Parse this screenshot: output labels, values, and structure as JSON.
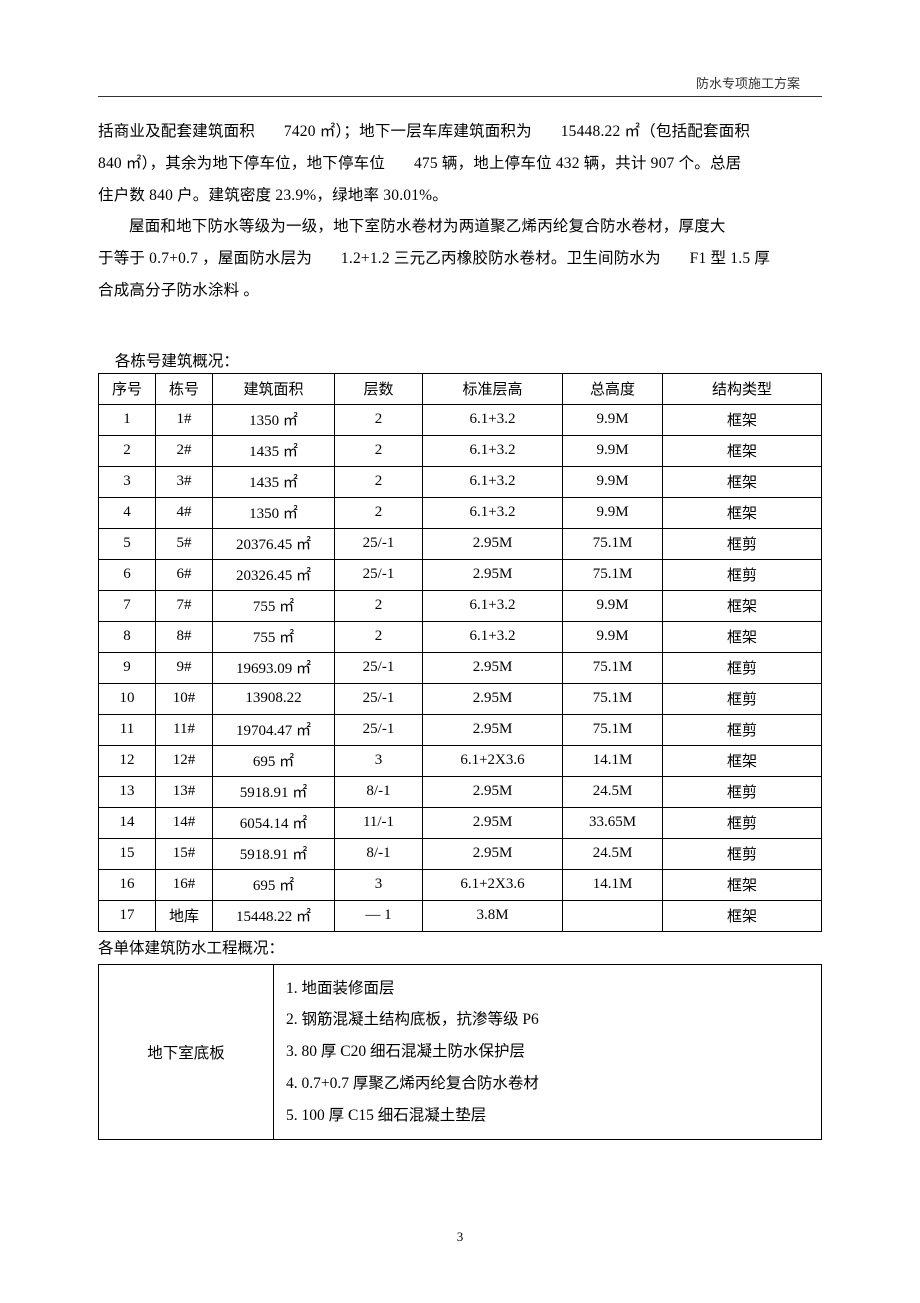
{
  "header": {
    "title": "防水专项施工方案"
  },
  "page_number": "3",
  "paragraphs": {
    "p1a": "括商业及配套建筑面积",
    "p1b": "7420 ㎡）；地下一层车库建筑面积为",
    "p1c": "15448.22 ㎡（包括配套面积",
    "p2a": "840 ㎡），其余为地下停车位，地下停车位",
    "p2b": "475 辆，地上停车位  432 辆，共计 907 个。总居",
    "p3": "住户数 840 户。建筑密度  23.9%，绿地率 30.01%。",
    "p4": "屋面和地下防水等级为一级，地下室防水卷材为两道聚乙烯丙纶复合防水卷材，厚度大",
    "p5a": "于等于 0.7+0.7 ，屋面防水层为",
    "p5b": "1.2+1.2  三元乙丙橡胶防水卷材。卫生间防水为",
    "p5c": "F1 型 1.5 厚",
    "p6": "合成高分子防水涂料 。"
  },
  "table1": {
    "caption": "各栋号建筑概况：",
    "headers": [
      "序号",
      "栋号",
      "建筑面积",
      "层数",
      "标准层高",
      "总高度",
      "结构类型"
    ],
    "col_widths": [
      "57px",
      "57px",
      "122px",
      "88px",
      "140px",
      "100px",
      ""
    ],
    "rows": [
      [
        "1",
        "1#",
        "1350 ㎡",
        "2",
        "6.1+3.2",
        "9.9M",
        "框架"
      ],
      [
        "2",
        "2#",
        "1435 ㎡",
        "2",
        "6.1+3.2",
        "9.9M",
        "框架"
      ],
      [
        "3",
        "3#",
        "1435 ㎡",
        "2",
        "6.1+3.2",
        "9.9M",
        "框架"
      ],
      [
        "4",
        "4#",
        "1350 ㎡",
        "2",
        "6.1+3.2",
        "9.9M",
        "框架"
      ],
      [
        "5",
        "5#",
        "20376.45 ㎡",
        "25/-1",
        "2.95M",
        "75.1M",
        "框剪"
      ],
      [
        "6",
        "6#",
        "20326.45 ㎡",
        "25/-1",
        "2.95M",
        "75.1M",
        "框剪"
      ],
      [
        "7",
        "7#",
        "755 ㎡",
        "2",
        "6.1+3.2",
        "9.9M",
        "框架"
      ],
      [
        "8",
        "8#",
        "755 ㎡",
        "2",
        "6.1+3.2",
        "9.9M",
        "框架"
      ],
      [
        "9",
        "9#",
        "19693.09 ㎡",
        "25/-1",
        "2.95M",
        "75.1M",
        "框剪"
      ],
      [
        "10",
        "10#",
        "13908.22",
        "25/-1",
        "2.95M",
        "75.1M",
        "框剪"
      ],
      [
        "11",
        "11#",
        "19704.47 ㎡",
        "25/-1",
        "2.95M",
        "75.1M",
        "框剪"
      ],
      [
        "12",
        "12#",
        "695 ㎡",
        "3",
        "6.1+2X3.6",
        "14.1M",
        "框架"
      ],
      [
        "13",
        "13#",
        "5918.91 ㎡",
        "8/-1",
        "2.95M",
        "24.5M",
        "框剪"
      ],
      [
        "14",
        "14#",
        "6054.14 ㎡",
        "11/-1",
        "2.95M",
        "33.65M",
        "框剪"
      ],
      [
        "15",
        "15#",
        "5918.91 ㎡",
        "8/-1",
        "2.95M",
        "24.5M",
        "框剪"
      ],
      [
        "16",
        "16#",
        "695 ㎡",
        "3",
        "6.1+2X3.6",
        "14.1M",
        "框架"
      ],
      [
        "17",
        "地库",
        "15448.22 ㎡",
        "— 1",
        "3.8M",
        "",
        "框架"
      ]
    ]
  },
  "table2": {
    "caption": "各单体建筑防水工程概况：",
    "left": "地下室底板",
    "items": [
      "1.  地面装修面层",
      "2.  钢筋混凝土结构底板，抗渗等级   P6",
      "3.  80 厚 C20 细石混凝土防水保护层",
      "4.  0.7+0.7  厚聚乙烯丙纶复合防水卷材",
      "5.  100 厚 C15 细石混凝土垫层"
    ]
  }
}
